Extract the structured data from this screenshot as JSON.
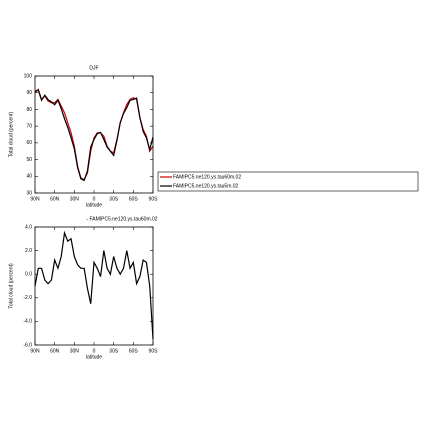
{
  "chart_data": [
    {
      "type": "line",
      "title": "DJF",
      "xlabel": "latitude",
      "ylabel": "Total cloud (percent)",
      "x": [
        90,
        85,
        80,
        75,
        70,
        65,
        60,
        55,
        50,
        45,
        40,
        35,
        30,
        25,
        20,
        15,
        10,
        5,
        0,
        -5,
        -10,
        -15,
        -20,
        -25,
        -30,
        -35,
        -40,
        -45,
        -50,
        -55,
        -60,
        -65,
        -70,
        -75,
        -80,
        -85,
        -90
      ],
      "xlim": [
        90,
        -90
      ],
      "xticks": [
        {
          "value": 90,
          "label": "90N"
        },
        {
          "value": 60,
          "label": "60N"
        },
        {
          "value": 30,
          "label": "30N"
        },
        0,
        {
          "value": -30,
          "label": "30S"
        },
        {
          "value": -60,
          "label": "60S"
        },
        {
          "value": -90,
          "label": "90S"
        }
      ],
      "ylim": [
        30,
        100
      ],
      "yticks": [
        30,
        40,
        50,
        60,
        70,
        80,
        90,
        100
      ],
      "series": [
        {
          "name": "FAMIPC5.ne120.ys.tau60m.02",
          "color": "#cc0000",
          "values": [
            90,
            92,
            86,
            88,
            85,
            84,
            84,
            86,
            82,
            78,
            72,
            66,
            58,
            46,
            39,
            38,
            42,
            55,
            63,
            66,
            66,
            64,
            58,
            55,
            54,
            62,
            72,
            78,
            83,
            86,
            87,
            86,
            75,
            68,
            64,
            55,
            58
          ]
        },
        {
          "name": "FAMIPC5.ne120.ys.tau5m.02",
          "color": "#000000",
          "values": [
            91,
            91.5,
            85.5,
            88.5,
            85.8,
            84.5,
            82.8,
            85.5,
            80.5,
            74.5,
            69.2,
            63,
            56.5,
            45.2,
            38.5,
            37.5,
            43.2,
            57.5,
            62,
            65.5,
            66.2,
            62,
            57.5,
            55,
            52.5,
            61.5,
            72,
            77.5,
            81,
            85.5,
            86,
            86.8,
            75.2,
            66.8,
            63,
            56,
            63.5
          ]
        }
      ]
    },
    {
      "type": "line",
      "title": "- FAMIPC5.ne120.ys.tau60m.02",
      "xlabel": "latitude",
      "ylabel": "Total cloud (percent)",
      "x": [
        90,
        85,
        80,
        75,
        70,
        65,
        60,
        55,
        50,
        45,
        40,
        35,
        30,
        25,
        20,
        15,
        10,
        5,
        0,
        -5,
        -10,
        -15,
        -20,
        -25,
        -30,
        -35,
        -40,
        -45,
        -50,
        -55,
        -60,
        -65,
        -70,
        -75,
        -80,
        -85,
        -90
      ],
      "xlim": [
        90,
        -90
      ],
      "xticks": [
        {
          "value": 90,
          "label": "90N"
        },
        {
          "value": 60,
          "label": "60N"
        },
        {
          "value": 30,
          "label": "30N"
        },
        0,
        {
          "value": -30,
          "label": "30S"
        },
        {
          "value": -60,
          "label": "60S"
        },
        {
          "value": -90,
          "label": "90S"
        }
      ],
      "ylim": [
        -6,
        4
      ],
      "yticks": [
        {
          "value": -6,
          "label": "-6.0"
        },
        {
          "value": -4,
          "label": "-4.0"
        },
        {
          "value": -2,
          "label": "-2.0"
        },
        {
          "value": 0,
          "label": "0.0"
        },
        {
          "value": 2,
          "label": "2.0"
        },
        {
          "value": 4,
          "label": "4.0"
        }
      ],
      "series": [
        {
          "color": "#000000",
          "values": [
            -1,
            0.5,
            0.5,
            -0.5,
            -0.8,
            -0.5,
            1.2,
            0.5,
            1.5,
            3.5,
            2.8,
            3,
            1.5,
            0.8,
            0.5,
            0.5,
            -1.2,
            -2.5,
            1,
            0.5,
            -0.2,
            2,
            0.5,
            0,
            1.5,
            0.5,
            0,
            0.5,
            2,
            0.5,
            1,
            -0.8,
            -0.2,
            1.2,
            1,
            -1,
            -5.5
          ]
        }
      ]
    }
  ]
}
